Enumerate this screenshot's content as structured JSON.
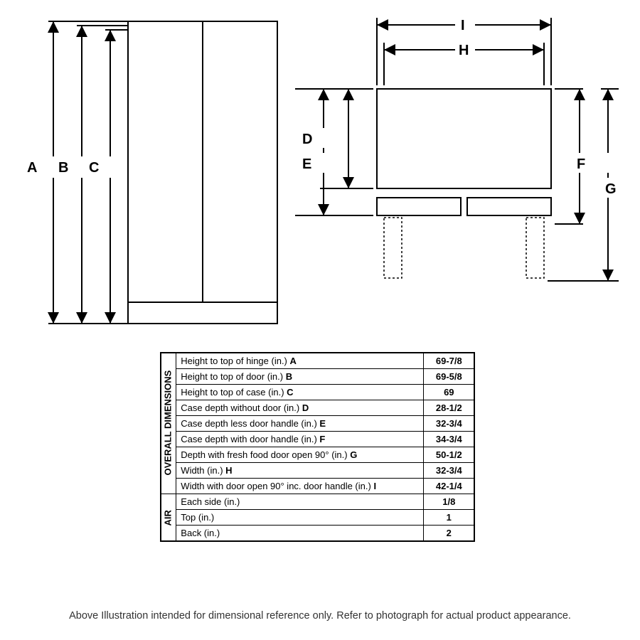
{
  "front_view": {
    "labels": {
      "A": "A",
      "B": "B",
      "C": "C"
    },
    "stroke": "#000000",
    "stroke_width": 2,
    "fill": "#ffffff"
  },
  "top_view": {
    "labels": {
      "D": "D",
      "E": "E",
      "F": "F",
      "G": "G",
      "H": "H",
      "I": "I"
    },
    "stroke": "#000000",
    "stroke_width": 2,
    "fill": "#ffffff",
    "dotted_stroke": "#000000"
  },
  "table": {
    "sections": [
      {
        "header": "OVERALL\nDIMENSIONS",
        "rows": [
          {
            "desc": "Height to top of hinge (in.)",
            "key": "A",
            "value": "69-7/8"
          },
          {
            "desc": "Height to top of door (in.)",
            "key": "B",
            "value": "69-5/8"
          },
          {
            "desc": "Height to top of case (in.)",
            "key": "C",
            "value": "69"
          },
          {
            "desc": "Case depth without door (in.)",
            "key": "D",
            "value": "28-1/2"
          },
          {
            "desc": "Case depth less door handle (in.)",
            "key": "E",
            "value": "32-3/4"
          },
          {
            "desc": "Case depth with door handle (in.)",
            "key": "F",
            "value": "34-3/4"
          },
          {
            "desc": "Depth with fresh food door open 90° (in.)",
            "key": "G",
            "value": "50-1/2"
          },
          {
            "desc": "Width (in.)",
            "key": "H",
            "value": "32-3/4"
          },
          {
            "desc": "Width with door open 90° inc. door handle (in.)",
            "key": "I",
            "value": "42-1/4"
          }
        ]
      },
      {
        "header": "AIR",
        "rows": [
          {
            "desc": "Each side (in.)",
            "key": "",
            "value": "1/8"
          },
          {
            "desc": "Top (in.)",
            "key": "",
            "value": "1"
          },
          {
            "desc": "Back (in.)",
            "key": "",
            "value": "2"
          }
        ]
      }
    ]
  },
  "footnote": "Above Illustration intended for dimensional reference only. Refer to photograph for actual product appearance."
}
